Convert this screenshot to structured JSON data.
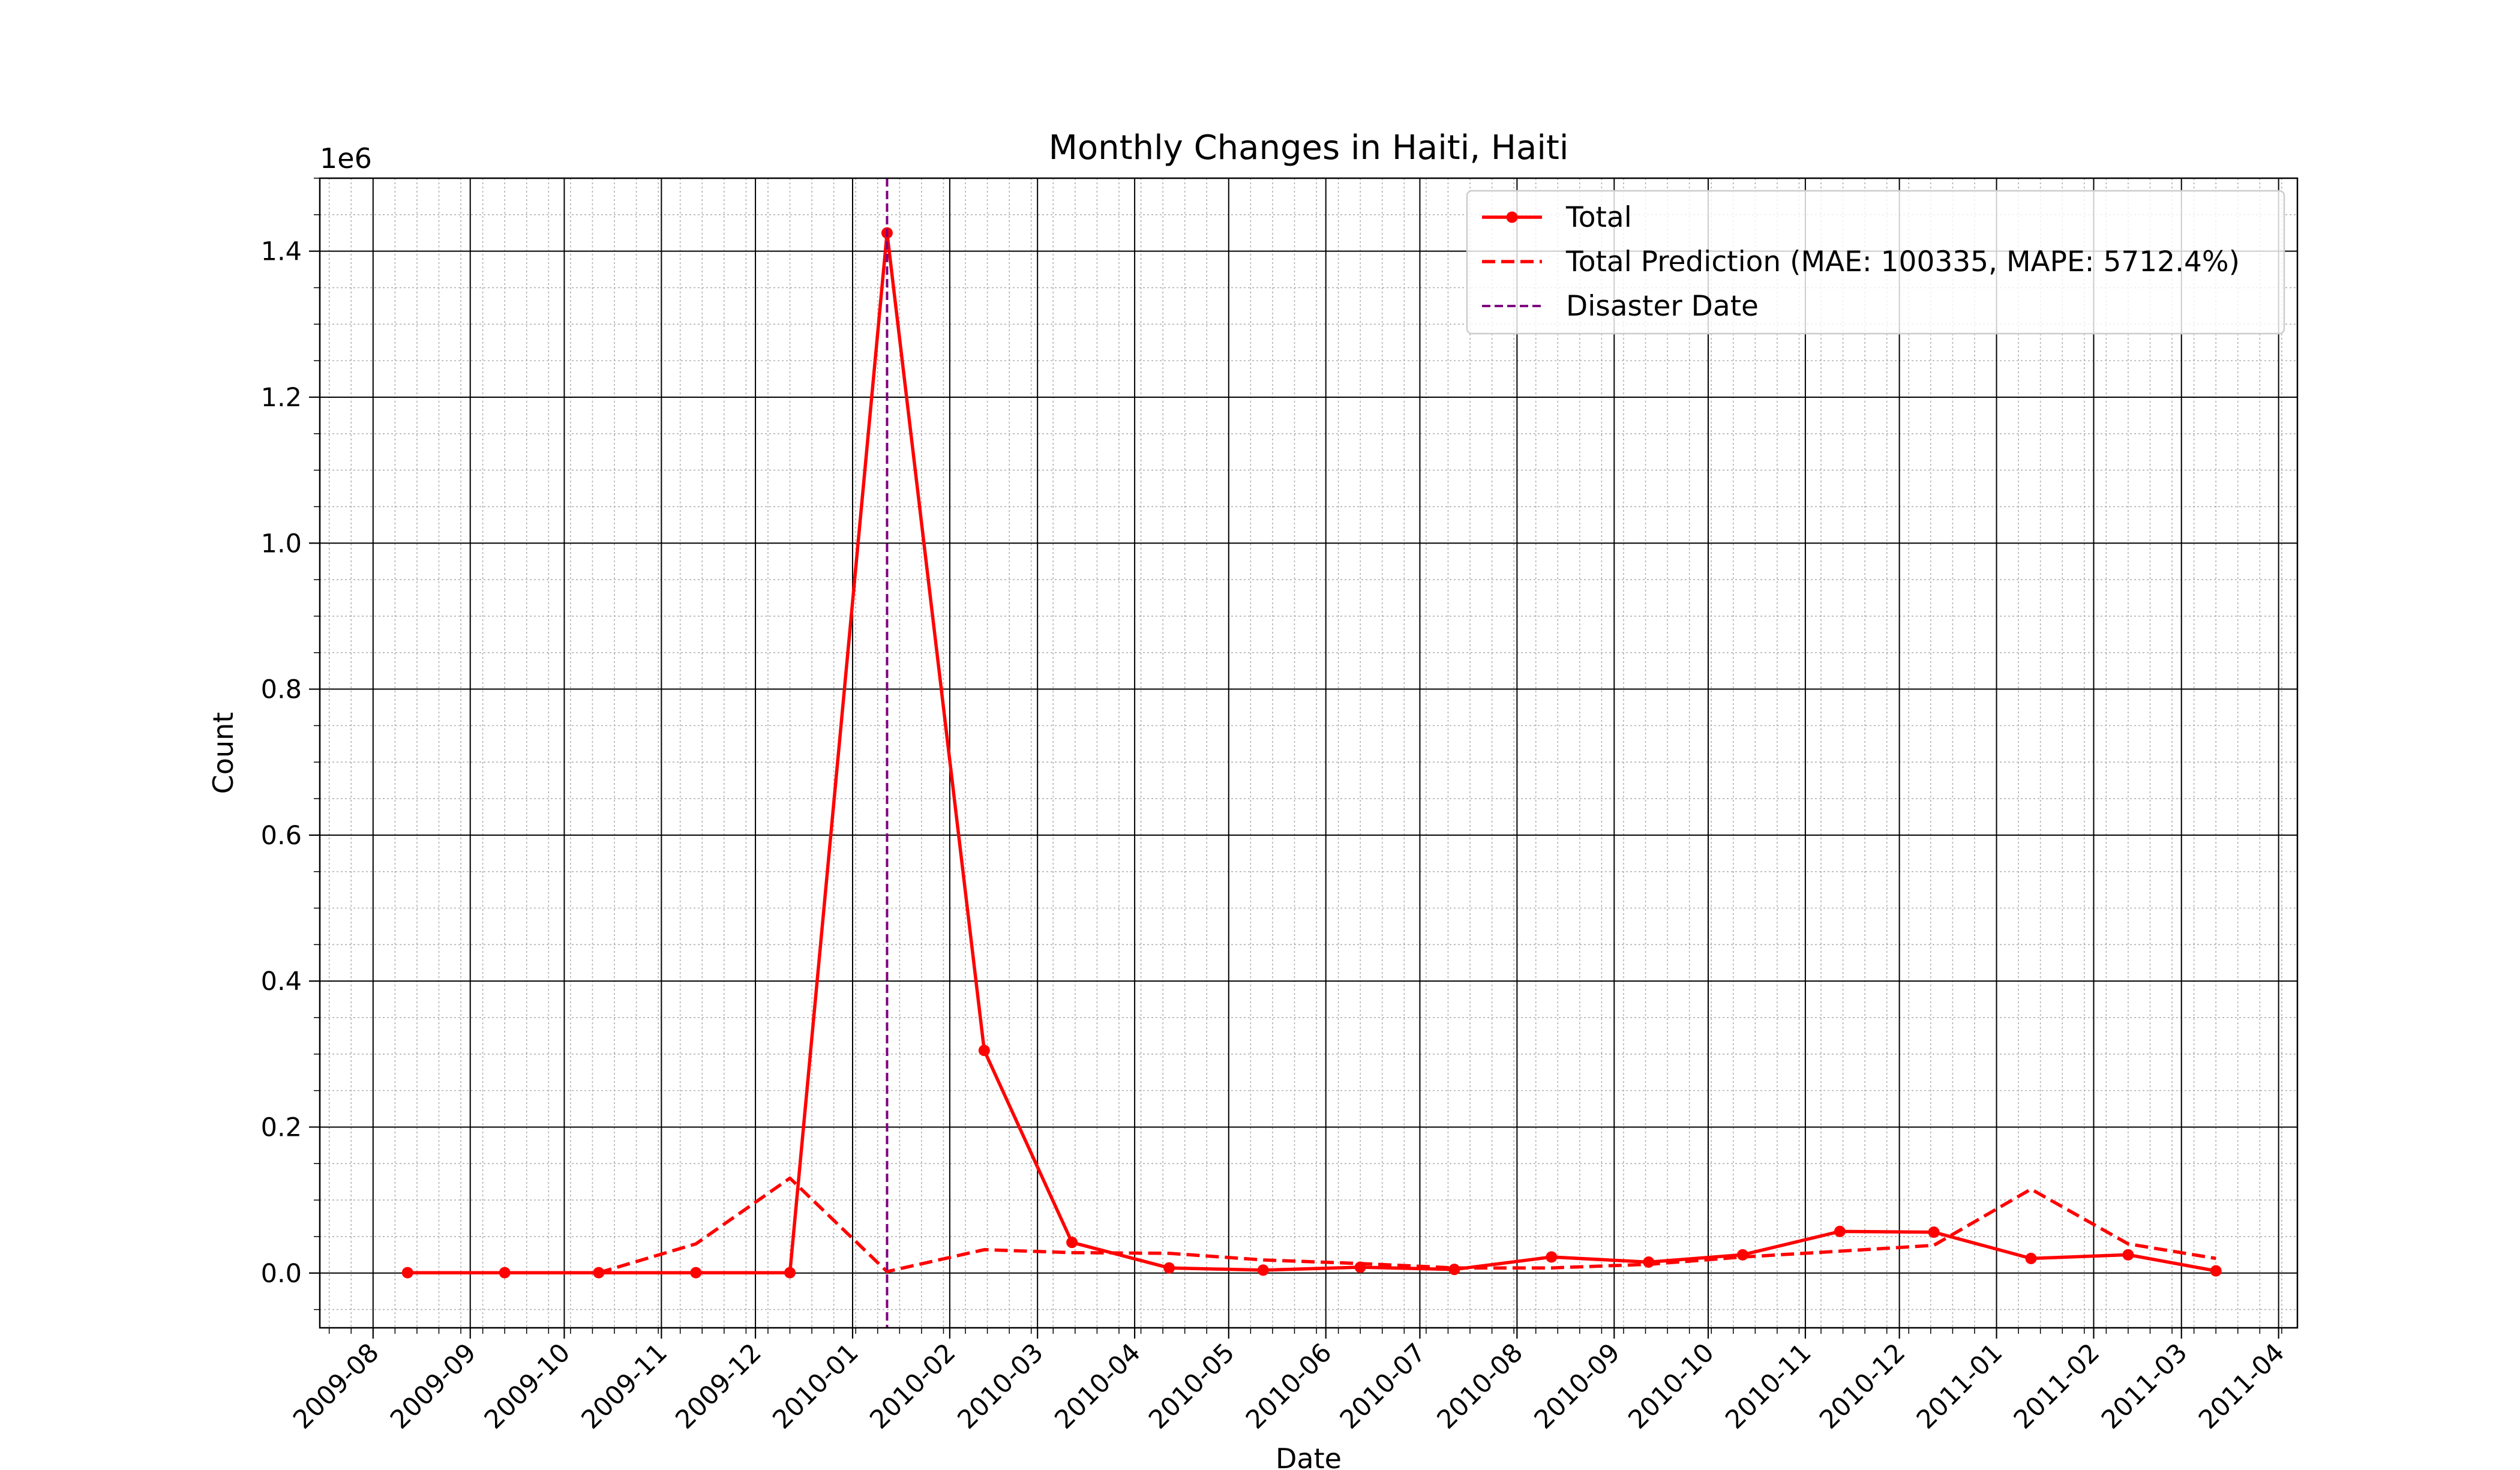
{
  "chart_data": {
    "type": "line",
    "title": "Monthly Changes in Haiti, Haiti",
    "xlabel": "Date",
    "ylabel": "Count",
    "y_offset_label": "1e6",
    "xlim": [
      "2009-07-15",
      "2011-04-07"
    ],
    "ylim": [
      -75000,
      1500000
    ],
    "y_ticks": [
      0,
      200000,
      400000,
      600000,
      800000,
      1000000,
      1200000,
      1400000
    ],
    "y_tick_labels": [
      "0.0",
      "0.2",
      "0.4",
      "0.6",
      "0.8",
      "1.0",
      "1.2",
      "1.4"
    ],
    "x_ticks": [
      "2009-08-01",
      "2009-09-01",
      "2009-10-01",
      "2009-11-01",
      "2009-12-01",
      "2010-01-01",
      "2010-02-01",
      "2010-03-01",
      "2010-04-01",
      "2010-05-01",
      "2010-06-01",
      "2010-07-01",
      "2010-08-01",
      "2010-09-01",
      "2010-10-01",
      "2010-11-01",
      "2010-12-01",
      "2011-01-01",
      "2011-02-01",
      "2011-03-01",
      "2011-04-01"
    ],
    "x_tick_labels": [
      "2009-08",
      "2009-09",
      "2009-10",
      "2009-11",
      "2009-12",
      "2010-01",
      "2010-02",
      "2010-03",
      "2010-04",
      "2010-05",
      "2010-06",
      "2010-07",
      "2010-08",
      "2010-09",
      "2010-10",
      "2010-11",
      "2010-12",
      "2011-01",
      "2011-02",
      "2011-03",
      "2011-04"
    ],
    "grid": {
      "major": true,
      "minor": true
    },
    "legend_position": "top-right",
    "series": [
      {
        "name": "Total",
        "style": "solid-markers",
        "color": "#ff0000",
        "x": [
          "2009-08-12",
          "2009-09-12",
          "2009-10-12",
          "2009-11-12",
          "2009-12-12",
          "2010-01-12",
          "2010-02-12",
          "2010-03-12",
          "2010-04-12",
          "2010-05-12",
          "2010-06-12",
          "2010-07-12",
          "2010-08-12",
          "2010-09-12",
          "2010-10-12",
          "2010-11-12",
          "2010-12-12",
          "2011-01-12",
          "2011-02-12",
          "2011-03-12"
        ],
        "values": [
          500,
          500,
          500,
          500,
          500,
          1425000,
          305000,
          42000,
          7000,
          4000,
          8000,
          5000,
          22000,
          15000,
          25000,
          57000,
          56000,
          20000,
          25000,
          3000
        ]
      },
      {
        "name": "Total Prediction (MAE: 100335, MAPE: 5712.4%)",
        "style": "dashed",
        "color": "#ff0000",
        "x": [
          "2009-10-12",
          "2009-11-12",
          "2009-12-12",
          "2010-01-12",
          "2010-02-12",
          "2010-03-12",
          "2010-04-12",
          "2010-05-12",
          "2010-06-12",
          "2010-07-12",
          "2010-08-12",
          "2010-09-12",
          "2010-10-12",
          "2010-11-12",
          "2010-12-12",
          "2011-01-12",
          "2011-02-12",
          "2011-03-12"
        ],
        "values": [
          500,
          40000,
          130000,
          2000,
          32000,
          28000,
          27000,
          18000,
          13000,
          7000,
          7000,
          12000,
          22000,
          30000,
          38000,
          115000,
          40000,
          20000
        ]
      }
    ],
    "vertical_lines": [
      {
        "name": "Disaster Date",
        "x": "2010-01-12",
        "color": "#800080",
        "style": "dashed"
      }
    ]
  }
}
